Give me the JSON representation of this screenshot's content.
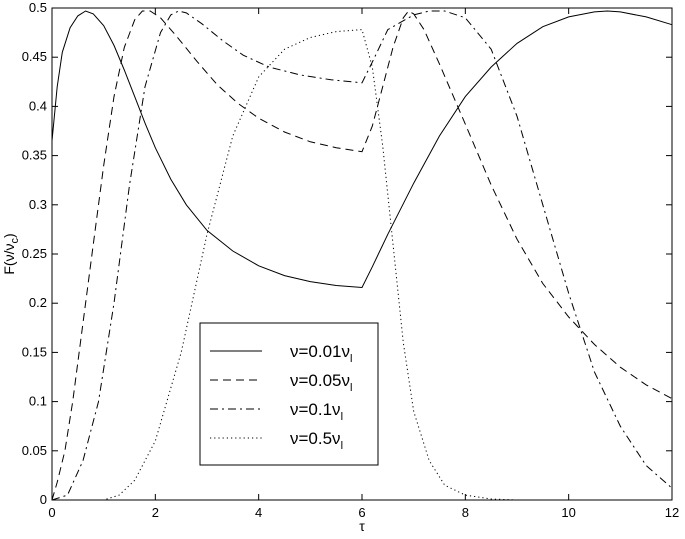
{
  "chart_data": {
    "type": "line",
    "xlabel": "τ",
    "ylabel": "F(ν/ν_c)",
    "ylabel_main": "F(ν/ν",
    "ylabel_sub": "c",
    "ylabel_tail": ")",
    "xlim": [
      0,
      12
    ],
    "ylim": [
      0,
      0.5
    ],
    "x_ticks": [
      "0",
      "2",
      "4",
      "6",
      "8",
      "10",
      "12"
    ],
    "y_ticks": [
      "0",
      "0.05",
      "0.1",
      "0.15",
      "0.2",
      "0.25",
      "0.3",
      "0.35",
      "0.4",
      "0.45",
      "0.5"
    ],
    "grid": false,
    "legend_position": "lower-center",
    "series": [
      {
        "name": "ν=0.01ν_l",
        "label_main": "ν=0.01ν",
        "label_sub": "l",
        "style": "solid",
        "points": [
          [
            0,
            0.365
          ],
          [
            0.1,
            0.42
          ],
          [
            0.2,
            0.455
          ],
          [
            0.35,
            0.48
          ],
          [
            0.5,
            0.492
          ],
          [
            0.65,
            0.497
          ],
          [
            0.8,
            0.494
          ],
          [
            1.0,
            0.482
          ],
          [
            1.2,
            0.462
          ],
          [
            1.4,
            0.437
          ],
          [
            1.6,
            0.41
          ],
          [
            1.8,
            0.383
          ],
          [
            2.0,
            0.358
          ],
          [
            2.3,
            0.326
          ],
          [
            2.6,
            0.3
          ],
          [
            3.0,
            0.274
          ],
          [
            3.5,
            0.253
          ],
          [
            4.0,
            0.238
          ],
          [
            4.5,
            0.228
          ],
          [
            5.0,
            0.222
          ],
          [
            5.5,
            0.218
          ],
          [
            6.0,
            0.216
          ],
          [
            6.2,
            0.237
          ],
          [
            6.5,
            0.27
          ],
          [
            7.0,
            0.322
          ],
          [
            7.5,
            0.37
          ],
          [
            8.0,
            0.41
          ],
          [
            8.5,
            0.44
          ],
          [
            9.0,
            0.464
          ],
          [
            9.5,
            0.481
          ],
          [
            10.0,
            0.491
          ],
          [
            10.5,
            0.496
          ],
          [
            10.75,
            0.497
          ],
          [
            11.0,
            0.496
          ],
          [
            11.5,
            0.491
          ],
          [
            12.0,
            0.483
          ]
        ]
      },
      {
        "name": "ν=0.05ν_l",
        "label_main": "ν=0.05ν",
        "label_sub": "l",
        "style": "dashed",
        "points": [
          [
            0,
            0.0
          ],
          [
            0.1,
            0.018
          ],
          [
            0.25,
            0.05
          ],
          [
            0.4,
            0.1
          ],
          [
            0.6,
            0.18
          ],
          [
            0.8,
            0.26
          ],
          [
            1.0,
            0.34
          ],
          [
            1.2,
            0.41
          ],
          [
            1.4,
            0.46
          ],
          [
            1.6,
            0.488
          ],
          [
            1.75,
            0.497
          ],
          [
            1.9,
            0.497
          ],
          [
            2.1,
            0.49
          ],
          [
            2.4,
            0.472
          ],
          [
            2.8,
            0.446
          ],
          [
            3.2,
            0.422
          ],
          [
            3.6,
            0.403
          ],
          [
            4.0,
            0.388
          ],
          [
            4.5,
            0.374
          ],
          [
            5.0,
            0.364
          ],
          [
            5.5,
            0.358
          ],
          [
            6.0,
            0.354
          ],
          [
            6.2,
            0.38
          ],
          [
            6.4,
            0.42
          ],
          [
            6.6,
            0.46
          ],
          [
            6.8,
            0.49
          ],
          [
            6.9,
            0.497
          ],
          [
            7.0,
            0.494
          ],
          [
            7.2,
            0.478
          ],
          [
            7.5,
            0.443
          ],
          [
            8.0,
            0.382
          ],
          [
            8.5,
            0.32
          ],
          [
            9.0,
            0.265
          ],
          [
            9.5,
            0.22
          ],
          [
            10.0,
            0.186
          ],
          [
            10.5,
            0.158
          ],
          [
            11.0,
            0.135
          ],
          [
            11.5,
            0.117
          ],
          [
            12.0,
            0.103
          ]
        ]
      },
      {
        "name": "ν=0.1ν_l",
        "label_main": "ν=0.1ν",
        "label_sub": "l",
        "style": "dashdot",
        "points": [
          [
            0,
            0.0
          ],
          [
            0.3,
            0.005
          ],
          [
            0.6,
            0.04
          ],
          [
            0.9,
            0.1
          ],
          [
            1.2,
            0.2
          ],
          [
            1.5,
            0.32
          ],
          [
            1.8,
            0.42
          ],
          [
            2.1,
            0.475
          ],
          [
            2.3,
            0.493
          ],
          [
            2.45,
            0.497
          ],
          [
            2.6,
            0.495
          ],
          [
            2.9,
            0.484
          ],
          [
            3.3,
            0.467
          ],
          [
            3.7,
            0.452
          ],
          [
            4.2,
            0.44
          ],
          [
            4.8,
            0.432
          ],
          [
            5.4,
            0.427
          ],
          [
            6.0,
            0.424
          ],
          [
            6.2,
            0.445
          ],
          [
            6.5,
            0.478
          ],
          [
            7.0,
            0.493
          ],
          [
            7.3,
            0.497
          ],
          [
            7.6,
            0.497
          ],
          [
            8.0,
            0.49
          ],
          [
            8.5,
            0.458
          ],
          [
            9.0,
            0.39
          ],
          [
            9.5,
            0.3
          ],
          [
            10.0,
            0.21
          ],
          [
            10.5,
            0.13
          ],
          [
            11.0,
            0.075
          ],
          [
            11.5,
            0.035
          ],
          [
            12.0,
            0.012
          ]
        ]
      },
      {
        "name": "ν=0.5ν_l",
        "label_main": "ν=0.5ν",
        "label_sub": "l",
        "style": "dotted",
        "points": [
          [
            0,
            0.0
          ],
          [
            1.0,
            0.0
          ],
          [
            1.3,
            0.005
          ],
          [
            1.6,
            0.02
          ],
          [
            2.0,
            0.06
          ],
          [
            2.5,
            0.15
          ],
          [
            3.0,
            0.27
          ],
          [
            3.5,
            0.37
          ],
          [
            4.0,
            0.43
          ],
          [
            4.5,
            0.458
          ],
          [
            5.0,
            0.47
          ],
          [
            5.5,
            0.476
          ],
          [
            6.0,
            0.478
          ],
          [
            6.2,
            0.44
          ],
          [
            6.4,
            0.36
          ],
          [
            6.6,
            0.26
          ],
          [
            6.8,
            0.16
          ],
          [
            7.0,
            0.09
          ],
          [
            7.3,
            0.04
          ],
          [
            7.6,
            0.015
          ],
          [
            8.0,
            0.005
          ],
          [
            8.5,
            0.001
          ],
          [
            9.0,
            0.0
          ]
        ]
      }
    ]
  }
}
